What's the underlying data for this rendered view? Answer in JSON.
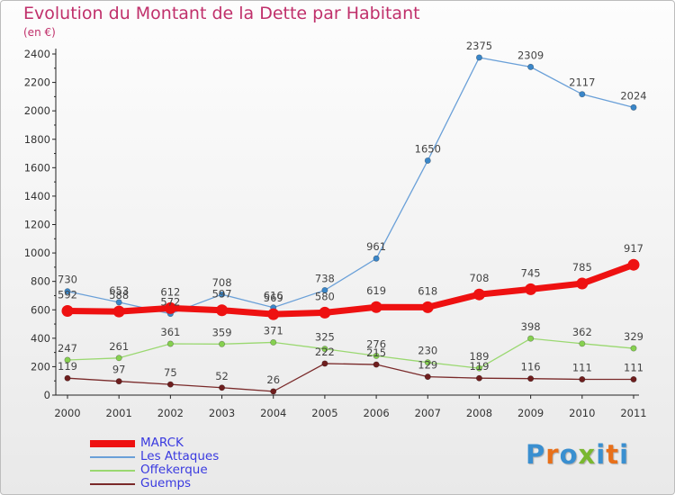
{
  "title": "Evolution du Montant de la Dette par Habitant",
  "unit": "(en €)",
  "logo": {
    "letters": [
      "P",
      "r",
      "o",
      "x",
      "i",
      "t",
      "i"
    ],
    "colors": [
      "#3a8fd0",
      "#e8701a",
      "#3a8fd0",
      "#7ab830",
      "#3a8fd0",
      "#e8701a",
      "#3a8fd0"
    ]
  },
  "chart_data": {
    "type": "line",
    "title": "Evolution du Montant de la Dette par Habitant",
    "ylabel": "(en €)",
    "x": [
      "2000",
      "2001",
      "2002",
      "2003",
      "2004",
      "2005",
      "2006",
      "2007",
      "2008",
      "2009",
      "2010",
      "2011"
    ],
    "ylim": [
      0,
      2400
    ],
    "yticks": [
      "0",
      "200",
      "400",
      "600",
      "800",
      "1000",
      "1200",
      "1400",
      "1600",
      "1800",
      "2000",
      "2200",
      "2400"
    ],
    "grid": false,
    "legend_position": "bottom-left",
    "series": [
      {
        "name": "MARCK",
        "color": "#ee1111",
        "emphasis": true,
        "values": [
          592,
          588,
          612,
          597,
          569,
          580,
          619,
          618,
          708,
          745,
          785,
          917
        ],
        "labels": [
          "592",
          "588",
          "612",
          "597",
          "569",
          "580",
          "619",
          "618",
          "708",
          "745",
          "785",
          "917"
        ]
      },
      {
        "name": "Les Attaques",
        "color": "#6aa0d8",
        "marker_color": "#3a86c8",
        "values": [
          730,
          653,
          572,
          708,
          616,
          738,
          961,
          1650,
          2375,
          2309,
          2117,
          2024
        ],
        "labels": [
          "730",
          "653",
          "572",
          "708",
          "616",
          "738",
          "961",
          "1650",
          "2375",
          "2309",
          "2117",
          "2024"
        ]
      },
      {
        "name": "Offekerque",
        "color": "#9ad870",
        "marker_color": "#86d050",
        "values": [
          247,
          261,
          361,
          359,
          371,
          325,
          276,
          230,
          189,
          398,
          362,
          329
        ],
        "labels": [
          "247",
          "261",
          "361",
          "359",
          "371",
          "325",
          "276",
          "230",
          "189",
          "398",
          "362",
          "329"
        ]
      },
      {
        "name": "Guemps",
        "color": "#7a2a2a",
        "marker_color": "#6e1e1e",
        "values": [
          119,
          97,
          75,
          52,
          26,
          222,
          215,
          129,
          119,
          116,
          111,
          111
        ],
        "labels": [
          "119",
          "97",
          "75",
          "52",
          "26",
          "222",
          "215",
          "129",
          "119",
          "116",
          "111",
          "111"
        ]
      }
    ]
  }
}
